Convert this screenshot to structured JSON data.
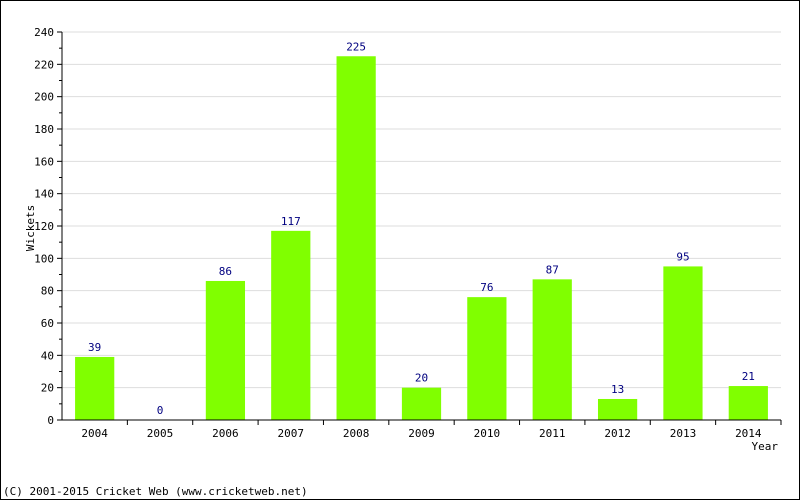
{
  "chart_data": {
    "type": "bar",
    "title": "",
    "xlabel": "Year",
    "ylabel": "Wickets",
    "ylim": [
      0,
      240
    ],
    "ytick_step": 20,
    "grid": true,
    "legend": "none",
    "bar_color": "#80ff00",
    "label_color": "#000080",
    "categories": [
      "2004",
      "2005",
      "2006",
      "2007",
      "2008",
      "2009",
      "2010",
      "2011",
      "2012",
      "2013",
      "2014"
    ],
    "values": [
      39,
      0,
      86,
      117,
      225,
      20,
      76,
      87,
      13,
      95,
      21
    ]
  },
  "footer": {
    "copyright": "(C) 2001-2015 Cricket Web (www.cricketweb.net)"
  }
}
